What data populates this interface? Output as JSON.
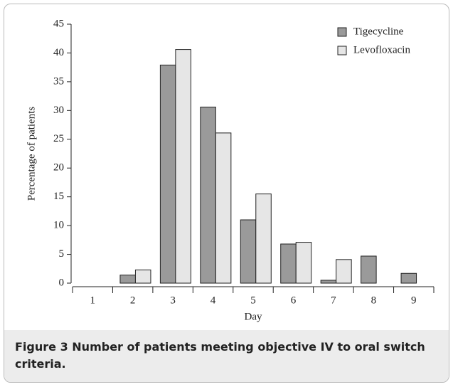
{
  "chart_data": {
    "type": "bar",
    "ylabel": "Percentage of patients",
    "xlabel": "Day",
    "categories": [
      "1",
      "2",
      "3",
      "4",
      "5",
      "6",
      "7",
      "8",
      "9"
    ],
    "series": [
      {
        "name": "Tigecycline",
        "color": "#9a9a9a",
        "values": [
          0,
          1.4,
          37.9,
          30.6,
          11,
          6.8,
          0.5,
          4.7,
          1.7
        ]
      },
      {
        "name": "Levofloxacin",
        "color": "#e6e6e6",
        "values": [
          0,
          2.3,
          40.6,
          26.1,
          15.5,
          7.1,
          4.1,
          0,
          0
        ]
      }
    ],
    "ylim": [
      0,
      45
    ],
    "yticks": [
      0,
      5,
      10,
      15,
      20,
      25,
      30,
      35,
      40,
      45
    ],
    "legend": "upper right"
  },
  "caption": {
    "label": "Figure 3",
    "text": "Number of patients meeting objective IV to oral switch criteria."
  }
}
